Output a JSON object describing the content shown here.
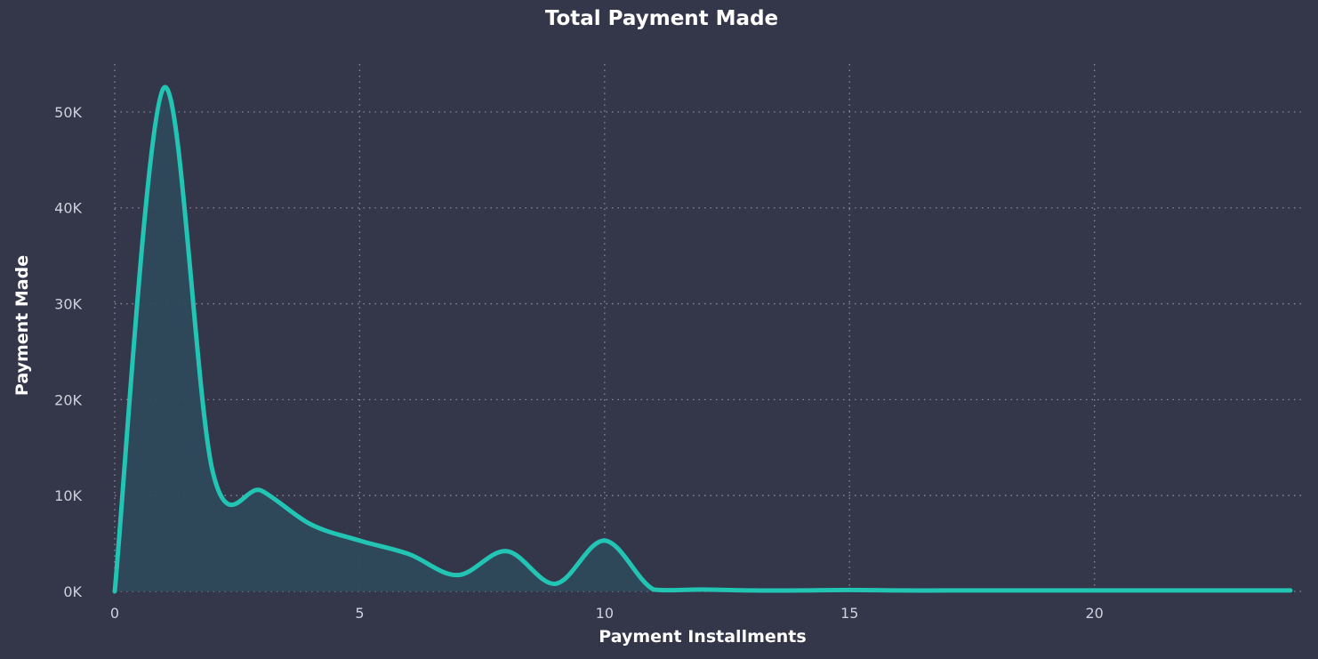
{
  "colors": {
    "background": "#343649",
    "line": "#22c5b4",
    "area": "#2f4a5b",
    "grid": "#8a8c9c",
    "tick_text": "#cfd1dc",
    "title_text": "#ffffff"
  },
  "chart_data": {
    "type": "area",
    "title": "Total Payment Made",
    "xlabel": "Payment Installments",
    "ylabel": "Payment Made",
    "xlim": [
      0,
      24
    ],
    "ylim": [
      0,
      55000
    ],
    "xticks": [
      0,
      5,
      10,
      15,
      20
    ],
    "xtick_labels": [
      "0",
      "5",
      "10",
      "15",
      "20"
    ],
    "yticks": [
      0,
      10000,
      20000,
      30000,
      40000,
      50000
    ],
    "ytick_labels": [
      "0K",
      "10K",
      "20K",
      "30K",
      "40K",
      "50K"
    ],
    "grid": true,
    "legend": "none",
    "series": [
      {
        "x": [
          0,
          1,
          2,
          3,
          4,
          5,
          6,
          7,
          8,
          9,
          10,
          11,
          12,
          13,
          14,
          15,
          16,
          17,
          18,
          20,
          21,
          22,
          23,
          24
        ],
        "y": [
          0,
          52500,
          12500,
          10500,
          7000,
          5300,
          3900,
          1700,
          4200,
          800,
          5300,
          200,
          200,
          100,
          100,
          150,
          100,
          100,
          100,
          100,
          100,
          100,
          100,
          100
        ]
      }
    ]
  }
}
